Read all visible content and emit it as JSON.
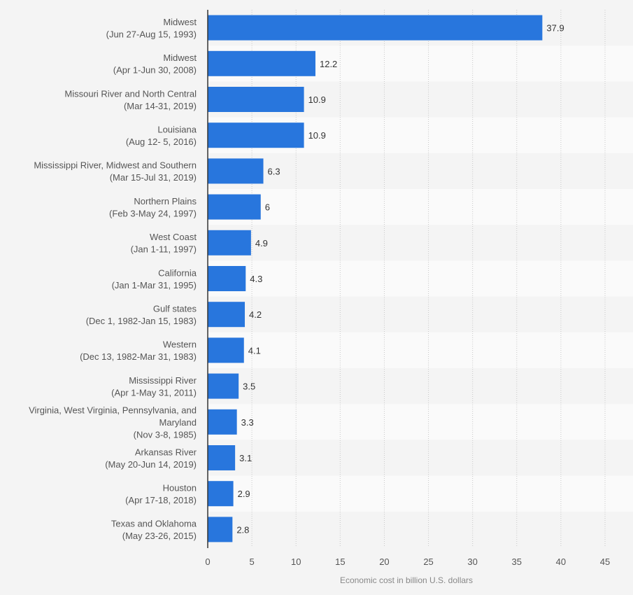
{
  "chart_data": {
    "type": "bar",
    "orientation": "horizontal",
    "categories": [
      [
        "Midwest",
        "(Jun 27-Aug 15, 1993)"
      ],
      [
        "Midwest",
        "(Apr 1-Jun 30, 2008)"
      ],
      [
        "Missouri River and North Central",
        "(Mar 14-31, 2019)"
      ],
      [
        "Louisiana",
        "(Aug 12- 5, 2016)"
      ],
      [
        "Mississippi River, Midwest and Southern",
        "(Mar 15-Jul 31, 2019)"
      ],
      [
        "Northern Plains",
        "(Feb 3-May 24, 1997)"
      ],
      [
        "West Coast",
        "(Jan 1-11, 1997)"
      ],
      [
        "California",
        "(Jan 1-Mar 31, 1995)"
      ],
      [
        "Gulf states",
        "(Dec 1, 1982-Jan 15, 1983)"
      ],
      [
        "Western",
        "(Dec 13, 1982-Mar 31, 1983)"
      ],
      [
        "Mississippi River",
        "(Apr 1-May 31, 2011)"
      ],
      [
        "Virginia, West Virginia, Pennsylvania, and",
        "Maryland",
        "(Nov 3-8, 1985)"
      ],
      [
        "Arkansas River",
        "(May 20-Jun 14, 2019)"
      ],
      [
        "Houston",
        "(Apr 17-18, 2018)"
      ],
      [
        "Texas and Oklahoma",
        "(May 23-26, 2015)"
      ]
    ],
    "values": [
      37.9,
      12.2,
      10.9,
      10.9,
      6.3,
      6,
      4.9,
      4.3,
      4.2,
      4.1,
      3.5,
      3.3,
      3.1,
      2.9,
      2.8
    ],
    "value_labels": [
      "37.9",
      "12.2",
      "10.9",
      "10.9",
      "6.3",
      "6",
      "4.9",
      "4.3",
      "4.2",
      "4.1",
      "3.5",
      "3.3",
      "3.1",
      "2.9",
      "2.8"
    ],
    "xlabel": "Economic cost in billion U.S. dollars",
    "ylabel": "",
    "xlim": [
      0,
      45
    ],
    "xticks": [
      "0",
      "5",
      "10",
      "15",
      "20",
      "25",
      "30",
      "35",
      "40",
      "45"
    ],
    "grid": true,
    "bar_color": "#2876dd"
  }
}
